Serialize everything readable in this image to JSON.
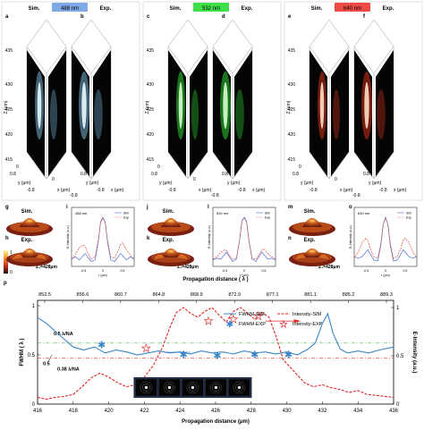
{
  "top": {
    "panels": [
      {
        "wavelength": "488 nm",
        "badge_color": "#7fa8e6",
        "glow": "#8fd8ff",
        "core": "#e8fbff",
        "sim_letter": "a",
        "exp_letter": "b",
        "sim_label": "Sim.",
        "exp_label": "Exp.",
        "z_ticks": [
          "435",
          "430",
          "425",
          "420",
          "415"
        ],
        "z_label": "Z (μm)",
        "y_ticks": [
          "0",
          "0.8",
          "-0.8"
        ],
        "x_ticks": [
          "0",
          "-0.8"
        ],
        "y_label": "y (μm)",
        "x_label": "x (μm)",
        "extra_tick": "0.8"
      },
      {
        "wavelength": "532 nm",
        "badge_color": "#3ee04a",
        "glow": "#37ff40",
        "core": "#d8ffd0",
        "sim_letter": "c",
        "exp_letter": "d",
        "sim_label": "Sim.",
        "exp_label": "Exp.",
        "z_ticks": [
          "435",
          "430",
          "425",
          "420",
          "415"
        ],
        "z_label": "Z (μm)",
        "y_ticks": [
          "0",
          "0.8",
          "-0.8"
        ],
        "x_ticks": [
          "0",
          "-0.8"
        ],
        "y_label": "y (μm)",
        "x_label": "x (μm)",
        "extra_tick": "0.8"
      },
      {
        "wavelength": "640 nm",
        "badge_color": "#ef4a44",
        "glow": "#ff3a22",
        "core": "#ffe0c8",
        "sim_letter": "e",
        "exp_letter": "f",
        "sim_label": "Sim.",
        "exp_label": "Exp.",
        "z_ticks": [
          "435",
          "430",
          "425",
          "420",
          "415"
        ],
        "z_label": "Z (μm)",
        "y_ticks": [
          "0",
          "0.8",
          "-0.8"
        ],
        "x_ticks": [
          "0",
          "-0.8"
        ],
        "y_label": "y (μm)",
        "x_label": "x (μm)",
        "extra_tick": "0.8"
      }
    ]
  },
  "middle": {
    "colorbar": {
      "ticks": [
        "1",
        "0"
      ]
    },
    "groups": [
      {
        "sim_letter": "g",
        "exp_letter": "h",
        "plot_letter": "i",
        "sim_label": "Sim.",
        "exp_label": "Exp.",
        "z_label": "Z₁=428μm",
        "plot_label": "488 nm",
        "y_label": "E-Intensity (a.u.)",
        "x_label": "r (μm)",
        "x_ticks": [
          "-0.5",
          "0",
          "0.5"
        ],
        "legend": [
          "Sim",
          "Exp"
        ]
      },
      {
        "sim_letter": "j",
        "exp_letter": "k",
        "plot_letter": "l",
        "sim_label": "Sim.",
        "exp_label": "Exp.",
        "z_label": "Z₁=428μm",
        "plot_label": "532 nm",
        "y_label": "E-Intensity (a.u.)",
        "x_label": "r (μm)",
        "x_ticks": [
          "-0.5",
          "0",
          "0.5"
        ],
        "legend": [
          "Sim",
          "Exp"
        ]
      },
      {
        "sim_letter": "m",
        "exp_letter": "n",
        "plot_letter": "o",
        "sim_label": "Sim.",
        "exp_label": "Exp.",
        "z_label": "Z₁=428μm",
        "plot_label": "640 nm",
        "y_label": "E-Intensity (a.u.)",
        "x_label": "r (μm)",
        "x_ticks": [
          "-0.5",
          "0",
          "0.5"
        ],
        "legend": [
          "Sim",
          "Exp"
        ]
      }
    ]
  },
  "bottom": {
    "letter": "p",
    "top_axis_label": "Propagation distance ( λ )",
    "bottom_axis_label": "Propagation distance (μm)",
    "left_axis_label": "FWHM ( λ )",
    "right_axis_label": "E-Intensity (a.u.)",
    "legend": [
      "FWHM-SIM",
      "FWHM-EXP",
      "Intensity-SIM",
      "Intensity-EXP"
    ],
    "annotation_05": "0.5 λ/NA",
    "annotation_038": "0.38 λ/NA",
    "annotation_05b": "0.5",
    "inset_label": "1μm"
  },
  "chart_data": [
    {
      "type": "line",
      "title": "",
      "xlabel": "r (μm)",
      "ylabel": "E-Intensity (a.u.)",
      "xlim": [
        -0.8,
        0.8
      ],
      "ylim": [
        0,
        1
      ],
      "x_ticks": [
        -0.5,
        0,
        0.5
      ],
      "label": "488 nm",
      "series": [
        {
          "name": "Sim",
          "color": "#4b6fd8",
          "x": [
            -0.8,
            -0.7,
            -0.6,
            -0.5,
            -0.45,
            -0.4,
            -0.3,
            -0.2,
            -0.12,
            -0.06,
            0,
            0.06,
            0.12,
            0.2,
            0.3,
            0.4,
            0.45,
            0.5,
            0.6,
            0.7,
            0.8
          ],
          "y": [
            0.1,
            0.15,
            0.08,
            0.18,
            0.22,
            0.16,
            0.05,
            0.08,
            0.45,
            0.9,
            1.0,
            0.9,
            0.45,
            0.08,
            0.05,
            0.16,
            0.22,
            0.18,
            0.08,
            0.15,
            0.1
          ]
        },
        {
          "name": "Exp",
          "color": "#e0503a",
          "x": [
            -0.8,
            -0.7,
            -0.6,
            -0.5,
            -0.45,
            -0.4,
            -0.3,
            -0.2,
            -0.12,
            -0.06,
            0,
            0.06,
            0.12,
            0.2,
            0.3,
            0.4,
            0.45,
            0.5,
            0.6,
            0.7,
            0.8
          ],
          "y": [
            0.1,
            0.2,
            0.35,
            0.4,
            0.38,
            0.25,
            0.1,
            0.15,
            0.5,
            0.88,
            0.98,
            0.88,
            0.5,
            0.15,
            0.12,
            0.3,
            0.42,
            0.45,
            0.3,
            0.18,
            0.1
          ]
        }
      ]
    },
    {
      "type": "line",
      "title": "",
      "xlabel": "r (μm)",
      "ylabel": "E-Intensity (a.u.)",
      "xlim": [
        -0.8,
        0.8
      ],
      "ylim": [
        0,
        1
      ],
      "x_ticks": [
        -0.5,
        0,
        0.5
      ],
      "label": "532 nm",
      "series": [
        {
          "name": "Sim",
          "color": "#4b6fd8",
          "x": [
            -0.8,
            -0.7,
            -0.6,
            -0.5,
            -0.45,
            -0.4,
            -0.3,
            -0.2,
            -0.12,
            -0.06,
            0,
            0.06,
            0.12,
            0.2,
            0.3,
            0.4,
            0.45,
            0.5,
            0.6,
            0.7,
            0.8
          ],
          "y": [
            0.08,
            0.12,
            0.1,
            0.2,
            0.25,
            0.18,
            0.05,
            0.1,
            0.5,
            0.92,
            1.0,
            0.92,
            0.5,
            0.1,
            0.05,
            0.18,
            0.25,
            0.2,
            0.1,
            0.12,
            0.08
          ]
        },
        {
          "name": "Exp",
          "color": "#e0503a",
          "x": [
            -0.8,
            -0.7,
            -0.6,
            -0.5,
            -0.45,
            -0.4,
            -0.3,
            -0.2,
            -0.12,
            -0.06,
            0,
            0.06,
            0.12,
            0.2,
            0.3,
            0.4,
            0.45,
            0.5,
            0.6,
            0.7,
            0.8
          ],
          "y": [
            0.1,
            0.15,
            0.25,
            0.3,
            0.28,
            0.2,
            0.1,
            0.12,
            0.5,
            0.9,
            0.98,
            0.9,
            0.5,
            0.12,
            0.1,
            0.22,
            0.3,
            0.32,
            0.22,
            0.15,
            0.1
          ]
        }
      ]
    },
    {
      "type": "line",
      "title": "",
      "xlabel": "r (μm)",
      "ylabel": "E-Intensity (a.u.)",
      "xlim": [
        -0.8,
        0.8
      ],
      "ylim": [
        0,
        1
      ],
      "x_ticks": [
        -0.5,
        0,
        0.5
      ],
      "label": "640 nm",
      "series": [
        {
          "name": "Sim",
          "color": "#4b6fd8",
          "x": [
            -0.8,
            -0.7,
            -0.6,
            -0.5,
            -0.45,
            -0.4,
            -0.3,
            -0.2,
            -0.12,
            -0.06,
            0,
            0.06,
            0.12,
            0.2,
            0.3,
            0.4,
            0.45,
            0.5,
            0.6,
            0.7,
            0.8
          ],
          "y": [
            0.15,
            0.12,
            0.15,
            0.25,
            0.3,
            0.22,
            0.08,
            0.06,
            0.4,
            0.85,
            1.0,
            0.85,
            0.4,
            0.06,
            0.08,
            0.22,
            0.3,
            0.25,
            0.15,
            0.12,
            0.15
          ]
        },
        {
          "name": "Exp",
          "color": "#e0503a",
          "x": [
            -0.8,
            -0.7,
            -0.6,
            -0.5,
            -0.45,
            -0.4,
            -0.3,
            -0.2,
            -0.12,
            -0.06,
            0,
            0.06,
            0.12,
            0.2,
            0.3,
            0.4,
            0.45,
            0.5,
            0.6,
            0.7,
            0.8
          ],
          "y": [
            0.12,
            0.25,
            0.45,
            0.55,
            0.5,
            0.35,
            0.15,
            0.12,
            0.45,
            0.85,
            0.98,
            0.85,
            0.45,
            0.12,
            0.15,
            0.35,
            0.5,
            0.55,
            0.45,
            0.25,
            0.12
          ]
        }
      ]
    },
    {
      "type": "line",
      "title": "",
      "xlabel": "Propagation distance (μm)",
      "ylabel": "FWHM ( λ )",
      "y2label": "E-Intensity (a.u.)",
      "xlim": [
        416,
        436
      ],
      "ylim": [
        0,
        1
      ],
      "y2lim": [
        0,
        1
      ],
      "x_ticks": [
        416,
        418,
        420,
        422,
        424,
        426,
        428,
        430,
        432,
        434,
        436
      ],
      "x2_ticks": [
        "852.5",
        "856.6",
        "860.7",
        "864.8",
        "868.9",
        "872.9",
        "877.1",
        "881.1",
        "885.2",
        "889.3"
      ],
      "y_ticks": [
        0,
        0.5,
        1
      ],
      "y2_ticks": [
        0,
        0.5,
        1
      ],
      "reference_lines": [
        {
          "label": "0.5 λ/NA",
          "y": 0.62,
          "color": "#4caf50"
        },
        {
          "label": "0.38 λ/NA",
          "y": 0.47,
          "color": "#e53935"
        }
      ],
      "series": [
        {
          "name": "FWHM-SIM",
          "axis": "left",
          "style": "solid",
          "color": "#3a86c8",
          "x": [
            416,
            416.5,
            417,
            417.5,
            418,
            418.6,
            419.2,
            419.8,
            420.4,
            421,
            421.6,
            422.2,
            422.8,
            423.4,
            424,
            424.6,
            425.2,
            425.8,
            426.4,
            427,
            427.6,
            428.2,
            428.8,
            429.4,
            430,
            430.6,
            431.2,
            431.6,
            432,
            432.3,
            432.6,
            433,
            433.4,
            434,
            434.6,
            435.2,
            436
          ],
          "y": [
            0.88,
            0.82,
            0.74,
            0.66,
            0.58,
            0.55,
            0.58,
            0.52,
            0.55,
            0.53,
            0.5,
            0.52,
            0.54,
            0.52,
            0.53,
            0.51,
            0.54,
            0.52,
            0.53,
            0.51,
            0.54,
            0.52,
            0.53,
            0.51,
            0.53,
            0.5,
            0.56,
            0.62,
            0.82,
            0.92,
            0.72,
            0.56,
            0.52,
            0.54,
            0.52,
            0.55,
            0.58
          ]
        },
        {
          "name": "FWHM-EXP",
          "axis": "left",
          "style": "markers",
          "color": "#3a86c8",
          "x": [
            419.6,
            424.2,
            426.1,
            428.2,
            430.1
          ],
          "y": [
            0.6,
            0.5,
            0.49,
            0.5,
            0.5
          ]
        },
        {
          "name": "Intensity-SIM",
          "axis": "right",
          "style": "dashed",
          "color": "#e02424",
          "x": [
            416,
            416.5,
            417,
            417.5,
            418,
            418.5,
            419,
            419.5,
            420,
            420.5,
            421,
            421.5,
            422,
            422.5,
            423,
            423.4,
            423.8,
            424.2,
            424.6,
            425,
            425.4,
            425.8,
            426.2,
            426.6,
            427,
            427.4,
            427.8,
            428.2,
            428.6,
            429,
            429.4,
            429.8,
            430.2,
            430.6,
            431,
            431.5,
            432,
            432.5,
            433,
            433.5,
            434,
            434.5,
            435,
            435.5,
            436
          ],
          "y": [
            0.07,
            0.05,
            0.07,
            0.08,
            0.1,
            0.18,
            0.27,
            0.32,
            0.28,
            0.22,
            0.18,
            0.2,
            0.28,
            0.4,
            0.58,
            0.78,
            0.95,
            1.0,
            0.94,
            0.9,
            0.96,
            1.0,
            0.92,
            0.85,
            0.96,
            1.0,
            0.94,
            0.88,
            0.95,
            0.9,
            0.7,
            0.46,
            0.38,
            0.3,
            0.22,
            0.18,
            0.2,
            0.17,
            0.15,
            0.12,
            0.14,
            0.1,
            0.09,
            0.08,
            0.07
          ]
        },
        {
          "name": "Intensity-EXP",
          "axis": "right",
          "style": "markers",
          "color": "#e02424",
          "x": [
            422.1,
            425.6,
            427.0,
            428.4
          ],
          "y": [
            0.58,
            0.86,
            0.88,
            0.91
          ]
        }
      ]
    }
  ]
}
